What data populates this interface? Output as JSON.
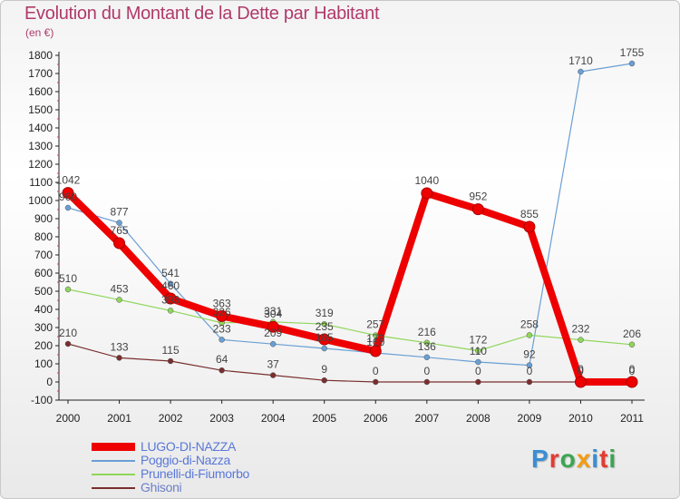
{
  "header": {
    "title": "Evolution du Montant de la Dette par Habitant",
    "subtitle": "(en €)"
  },
  "logo": {
    "text": "Proxiti",
    "letter_colors": [
      "#3a8ed4",
      "#e53b2f",
      "#3aa651",
      "#f39c12",
      "#3a8ed4",
      "#e53b2f",
      "#3aa651"
    ]
  },
  "chart_data": {
    "type": "line",
    "title": "Evolution du Montant de la Dette par Habitant",
    "subtitle": "(en €)",
    "xlabel": "",
    "ylabel": "",
    "x": [
      "2000",
      "2001",
      "2002",
      "2003",
      "2004",
      "2005",
      "2006",
      "2007",
      "2008",
      "2009",
      "2010",
      "2011"
    ],
    "ylim": [
      -100,
      1800
    ],
    "yticks": [
      "-100",
      "0",
      "100",
      "200",
      "300",
      "400",
      "500",
      "600",
      "700",
      "800",
      "900",
      "1000",
      "1100",
      "1200",
      "1300",
      "1400",
      "1500",
      "1600",
      "1700",
      "1800"
    ],
    "grid": false,
    "legend_position": "bottom-left",
    "series": [
      {
        "name": "LUGO-DI-NAZZA",
        "color": "#ee0000",
        "emphasis": true,
        "values": [
          1042,
          765,
          460,
          363,
          304,
          235,
          170,
          1040,
          952,
          855,
          0,
          0
        ],
        "labels": [
          "1042",
          "765",
          "460",
          "363",
          "304",
          "235",
          "170",
          "1040",
          "952",
          "855",
          "0",
          "0"
        ]
      },
      {
        "name": "Poggio-di-Nazza",
        "color": "#6a9fd4",
        "values": [
          960,
          877,
          541,
          233,
          209,
          185,
          160,
          136,
          110,
          92,
          1710,
          1755
        ],
        "labels": [
          "960",
          "877",
          "541",
          "233",
          "209",
          "185",
          "160",
          "136",
          "110",
          "92",
          "1710",
          "1755"
        ]
      },
      {
        "name": "Prunelli-di-Fiumorbo",
        "color": "#8fd65a",
        "values": [
          510,
          453,
          393,
          326,
          331,
          319,
          257,
          216,
          172,
          258,
          232,
          206
        ],
        "labels": [
          "510",
          "453",
          "393",
          "326",
          "331",
          "319",
          "257",
          "216",
          "172",
          "258",
          "232",
          "206"
        ]
      },
      {
        "name": "Ghisoni",
        "color": "#7a2e2e",
        "values": [
          210,
          133,
          115,
          64,
          37,
          9,
          0,
          0,
          0,
          0,
          0,
          0
        ],
        "labels": [
          "210",
          "133",
          "115",
          "64",
          "37",
          "9",
          "0",
          "0",
          "0",
          "0",
          "0",
          "0"
        ]
      }
    ]
  }
}
